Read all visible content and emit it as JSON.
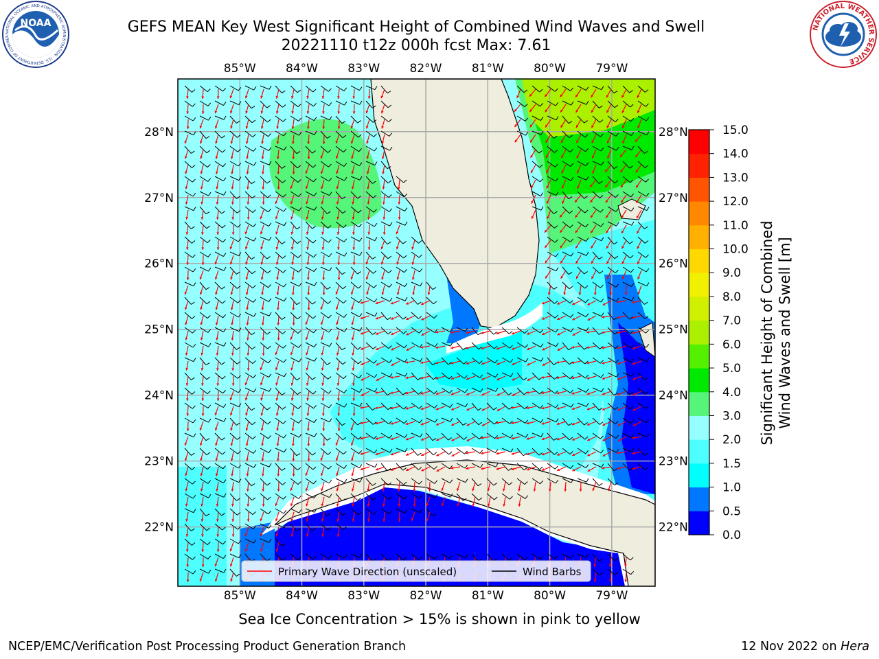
{
  "header": {
    "title_line1": "GEFS MEAN Key West Significant Height of Combined Wind Waves and Swell",
    "title_line2": "20221110 t12z 000h fcst   Max: 7.61"
  },
  "logos": {
    "left": {
      "text": "NOAA",
      "ring_text": "NATIONAL OCEANIC AND ATMOSPHERIC ADMINISTRATION · U.S. DEPARTMENT OF COMMERCE",
      "icon": "noaa-logo"
    },
    "right": {
      "ring_text": "NATIONAL WEATHER SERVICE",
      "icon": "nws-logo"
    }
  },
  "map": {
    "lon_labels": [
      "85°W",
      "84°W",
      "83°W",
      "82°W",
      "81°W",
      "80°W",
      "79°W"
    ],
    "lat_labels": [
      "28°N",
      "27°N",
      "26°N",
      "25°N",
      "24°N",
      "23°N",
      "22°N"
    ],
    "lon_range": [
      -86.0,
      -78.3
    ],
    "lat_range": [
      21.1,
      28.8
    ],
    "land_color": "#efedde",
    "ocean_default_color": "#96ffff",
    "barb_color": "#000000",
    "arrow_color": "#ff0000"
  },
  "legend": {
    "items": [
      {
        "label": "Primary Wave Direction (unscaled)",
        "color": "#ff0000"
      },
      {
        "label": "Wind Barbs",
        "color": "#000000"
      }
    ]
  },
  "colorbar": {
    "label_line1": "Significant Height of Combined",
    "label_line2": "Wind Waves and Swell [m]",
    "ticks": [
      "0.0",
      "0.5",
      "1.0",
      "1.5",
      "2.0",
      "3.0",
      "4.0",
      "5.0",
      "6.0",
      "7.0",
      "8.0",
      "9.0",
      "10.0",
      "11.0",
      "12.0",
      "13.0",
      "14.0",
      "15.0"
    ],
    "colors": [
      "#0000ff",
      "#0077ff",
      "#00ffff",
      "#4dffff",
      "#96ffff",
      "#55f57a",
      "#00e900",
      "#55f000",
      "#aaf000",
      "#d0f000",
      "#f0f000",
      "#ffd800",
      "#ffb000",
      "#ff8800",
      "#ff5500",
      "#ff2200",
      "#ff0000"
    ]
  },
  "footer": {
    "caption": "Sea Ice Concentration > 15% is shown in pink to yellow",
    "left": "NCEP/EMC/Verification Post Processing Product Generation Branch",
    "right_date": "12 Nov 2022 on",
    "right_host": "Hera"
  }
}
